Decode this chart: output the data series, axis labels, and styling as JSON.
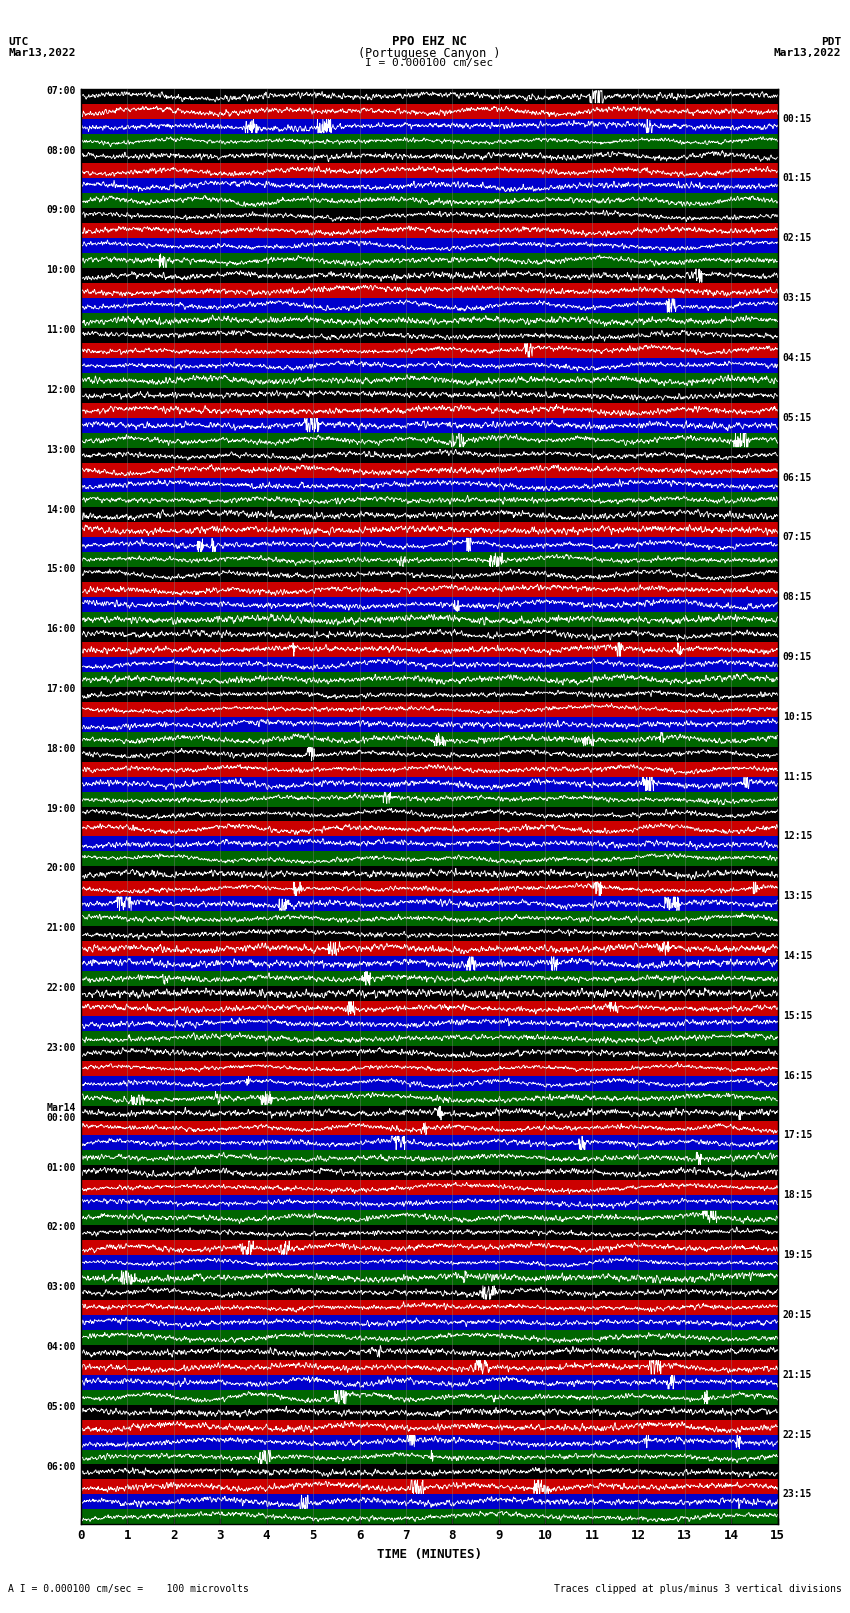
{
  "title_line1": "PPO EHZ NC",
  "title_line2": "(Portuguese Canyon )",
  "title_line3": "I = 0.000100 cm/sec",
  "utc_label": "UTC",
  "utc_date": "Mar13,2022",
  "pdt_label": "PDT",
  "pdt_date": "Mar13,2022",
  "bottom_left": "A I = 0.000100 cm/sec =    100 microvolts",
  "bottom_right": "Traces clipped at plus/minus 3 vertical divisions",
  "xlabel": "TIME (MINUTES)",
  "left_times": [
    "07:00",
    "08:00",
    "09:00",
    "10:00",
    "11:00",
    "12:00",
    "13:00",
    "14:00",
    "15:00",
    "16:00",
    "17:00",
    "18:00",
    "19:00",
    "20:00",
    "21:00",
    "22:00",
    "23:00",
    "Mar14\n00:00",
    "01:00",
    "02:00",
    "03:00",
    "04:00",
    "05:00",
    "06:00"
  ],
  "right_times": [
    "00:15",
    "01:15",
    "02:15",
    "03:15",
    "04:15",
    "05:15",
    "06:15",
    "07:15",
    "08:15",
    "09:15",
    "10:15",
    "11:15",
    "12:15",
    "13:15",
    "14:15",
    "15:15",
    "16:15",
    "17:15",
    "18:15",
    "19:15",
    "20:15",
    "21:15",
    "22:15",
    "23:15"
  ],
  "n_rows": 24,
  "n_bands": 4,
  "band_colors": [
    "#000000",
    "#cc0000",
    "#0000cc",
    "#006600"
  ],
  "trace_color": "#ffffff",
  "grid_color": "#808080",
  "bg_color": "#ffffff",
  "plot_bg": "#ffffff",
  "xticks": [
    0,
    1,
    2,
    3,
    4,
    5,
    6,
    7,
    8,
    9,
    10,
    11,
    12,
    13,
    14,
    15
  ],
  "xticklabels": [
    "0",
    "1",
    "2",
    "3",
    "4",
    "5",
    "6",
    "7",
    "8",
    "9",
    "10",
    "11",
    "12",
    "13",
    "14",
    "15"
  ],
  "seed": 42
}
